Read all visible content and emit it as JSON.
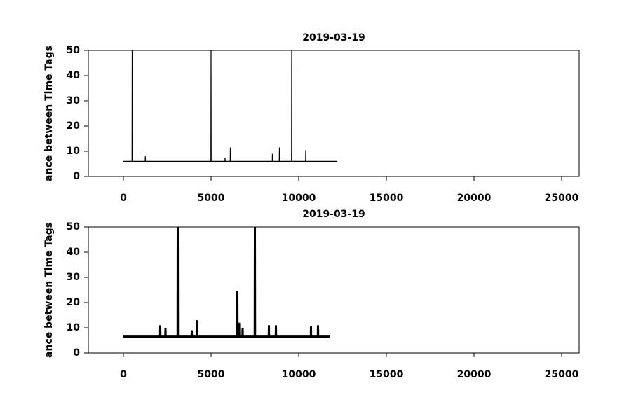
{
  "chart_data": [
    {
      "type": "line",
      "title": "2019-03-19",
      "y_label": "ance between Time Tags",
      "xlim": [
        -2000,
        26000
      ],
      "xticks": [
        0,
        5000,
        10000,
        15000,
        20000,
        25000
      ],
      "ylim": [
        0,
        50
      ],
      "yticks": [
        0,
        10,
        20,
        30,
        40,
        50
      ],
      "x": [
        0,
        490,
        500,
        510,
        1240,
        1250,
        1260,
        4990,
        5000,
        5010,
        5790,
        5800,
        5810,
        6090,
        6100,
        6110,
        8490,
        8500,
        8510,
        8890,
        8900,
        8910,
        9590,
        9600,
        9610,
        10390,
        10400,
        10410,
        12200
      ],
      "values": [
        6,
        6,
        50,
        6,
        6,
        8,
        6,
        6,
        50,
        6,
        6,
        7.5,
        6,
        6,
        11.5,
        6,
        6,
        9,
        6,
        6,
        11.5,
        6,
        6,
        50,
        6,
        6,
        10.5,
        6,
        6
      ],
      "color": "#000000"
    },
    {
      "type": "line",
      "title": "2019-03-19",
      "y_label": "ance between Time Tags",
      "xlim": [
        -2000,
        26000
      ],
      "xticks": [
        0,
        5000,
        10000,
        15000,
        20000,
        25000
      ],
      "ylim": [
        0,
        50
      ],
      "yticks": [
        0,
        10,
        20,
        30,
        40,
        50
      ],
      "x": [
        0,
        2090,
        2100,
        2110,
        2390,
        2400,
        2410,
        3090,
        3100,
        3110,
        3890,
        3900,
        3910,
        4190,
        4200,
        4210,
        6490,
        6500,
        6510,
        6590,
        6600,
        6610,
        6790,
        6800,
        6810,
        7490,
        7500,
        7510,
        8290,
        8300,
        8310,
        8690,
        8700,
        8710,
        10690,
        10700,
        10710,
        11090,
        11100,
        11110,
        11800
      ],
      "values": [
        6.5,
        6.5,
        11,
        6.5,
        6.5,
        10,
        6.5,
        6.5,
        50,
        6.5,
        6.5,
        9,
        6.5,
        6.5,
        13,
        6.5,
        6.5,
        24.5,
        6.5,
        6.5,
        12,
        6.5,
        6.5,
        10,
        6.5,
        6.5,
        50,
        6.5,
        6.5,
        11,
        6.5,
        6.5,
        11,
        6.5,
        6.5,
        10.5,
        6.5,
        6.5,
        11,
        6.5,
        6.5
      ],
      "color": "#000000"
    }
  ]
}
